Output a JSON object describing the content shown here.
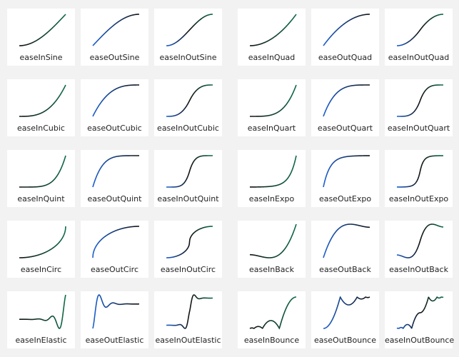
{
  "cards": [
    {
      "label": "easeInSine"
    },
    {
      "label": "easeOutSine"
    },
    {
      "label": "easeInOutSine"
    },
    {
      "label": "easeInQuad"
    },
    {
      "label": "easeOutQuad"
    },
    {
      "label": "easeInOutQuad"
    },
    {
      "label": "easeInCubic"
    },
    {
      "label": "easeOutCubic"
    },
    {
      "label": "easeInOutCubic"
    },
    {
      "label": "easeInQuart"
    },
    {
      "label": "easeOutQuart"
    },
    {
      "label": "easeInOutQuart"
    },
    {
      "label": "easeInQuint"
    },
    {
      "label": "easeOutQuint"
    },
    {
      "label": "easeInOutQuint"
    },
    {
      "label": "easeInExpo"
    },
    {
      "label": "easeOutExpo"
    },
    {
      "label": "easeInOutExpo"
    },
    {
      "label": "easeInCirc"
    },
    {
      "label": "easeOutCirc"
    },
    {
      "label": "easeInOutCirc"
    },
    {
      "label": "easeInBack"
    },
    {
      "label": "easeOutBack"
    },
    {
      "label": "easeInOutBack"
    },
    {
      "label": "easeInElastic"
    },
    {
      "label": "easeOutElastic"
    },
    {
      "label": "easeInOutElastic"
    },
    {
      "label": "easeInBounce"
    },
    {
      "label": "easeOutBounce"
    },
    {
      "label": "easeInOutBounce"
    }
  ]
}
